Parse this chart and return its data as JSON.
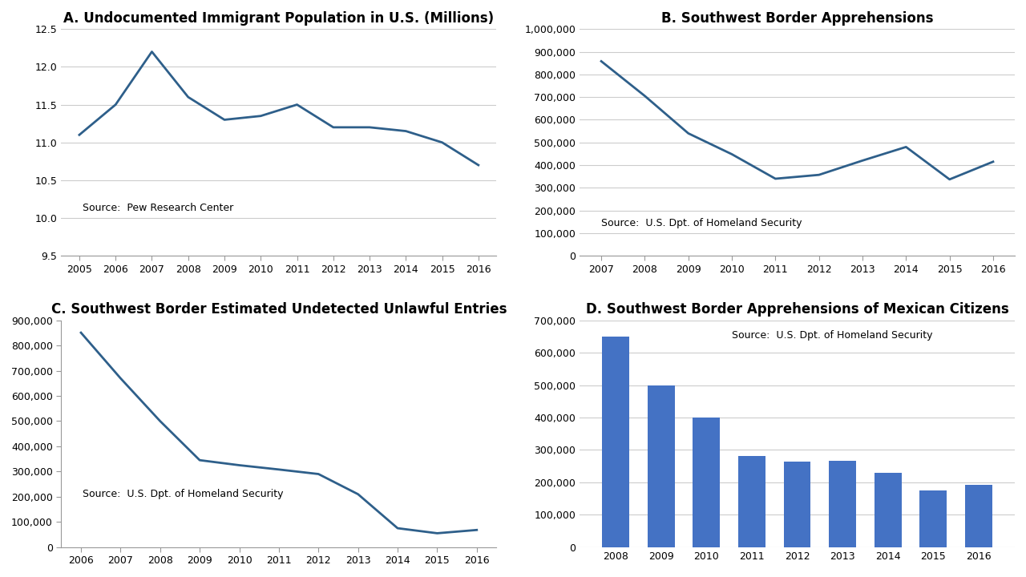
{
  "panel_A": {
    "title": "A. Undocumented Immigrant Population in U.S. (Millions)",
    "years": [
      2005,
      2006,
      2007,
      2008,
      2009,
      2010,
      2011,
      2012,
      2013,
      2014,
      2015,
      2016
    ],
    "values": [
      11.1,
      11.5,
      12.2,
      11.6,
      11.3,
      11.35,
      11.5,
      11.2,
      11.2,
      11.15,
      11.0,
      10.7
    ],
    "ylim": [
      9.5,
      12.5
    ],
    "yticks": [
      9.5,
      10.0,
      10.5,
      11.0,
      11.5,
      12.0,
      12.5
    ],
    "source": "Source:  Pew Research Center"
  },
  "panel_B": {
    "title": "B. Southwest Border Apprehensions",
    "years": [
      2007,
      2008,
      2009,
      2010,
      2011,
      2012,
      2013,
      2014,
      2015,
      2016
    ],
    "values": [
      858000,
      705000,
      540000,
      448000,
      340000,
      357000,
      420000,
      480000,
      337000,
      415000
    ],
    "ylim": [
      0,
      1000000
    ],
    "yticks": [
      0,
      100000,
      200000,
      300000,
      400000,
      500000,
      600000,
      700000,
      800000,
      900000,
      1000000
    ],
    "source": "Source:  U.S. Dpt. of Homeland Security"
  },
  "panel_C": {
    "title": "C. Southwest Border Estimated Undetected Unlawful Entries",
    "years": [
      2006,
      2007,
      2008,
      2009,
      2010,
      2011,
      2012,
      2013,
      2014,
      2015,
      2016
    ],
    "values": [
      851000,
      670000,
      500000,
      345000,
      325000,
      308000,
      290000,
      210000,
      75000,
      55000,
      68000
    ],
    "ylim": [
      0,
      900000
    ],
    "yticks": [
      0,
      100000,
      200000,
      300000,
      400000,
      500000,
      600000,
      700000,
      800000,
      900000
    ],
    "source": "Source:  U.S. Dpt. of Homeland Security"
  },
  "panel_D": {
    "title": "D. Southwest Border Apprehensions of Mexican Citizens",
    "years": [
      2008,
      2009,
      2010,
      2011,
      2012,
      2013,
      2014,
      2015,
      2016
    ],
    "values": [
      650000,
      500000,
      400000,
      280000,
      265000,
      267000,
      230000,
      175000,
      192000
    ],
    "ylim": [
      0,
      700000
    ],
    "yticks": [
      0,
      100000,
      200000,
      300000,
      400000,
      500000,
      600000,
      700000
    ],
    "source": "Source:  U.S. Dpt. of Homeland Security",
    "bar_color": "#4472C4"
  },
  "line_color": "#2E5F8A",
  "line_width": 2.0,
  "title_fontsize": 12,
  "tick_fontsize": 9,
  "source_fontsize": 9,
  "background_color": "#FFFFFF",
  "grid_color": "#CCCCCC"
}
